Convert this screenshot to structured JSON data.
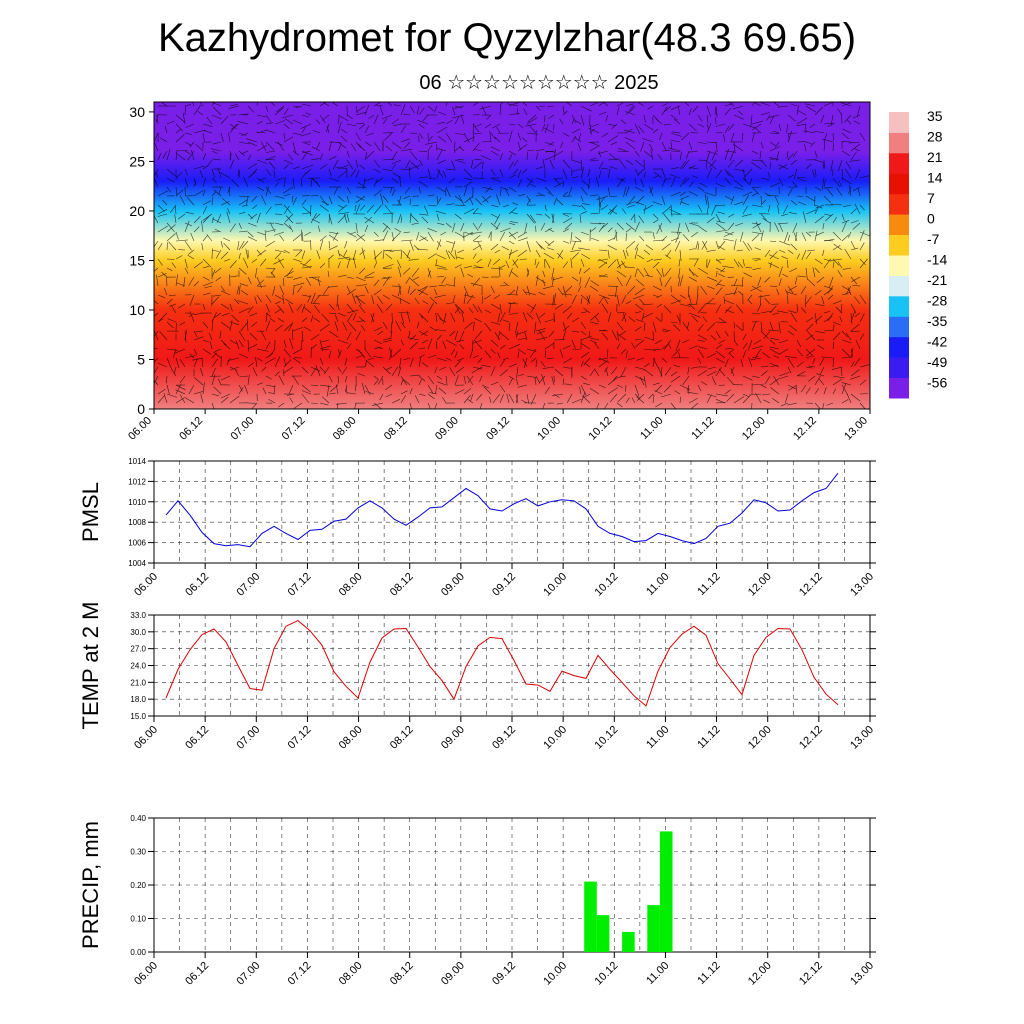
{
  "title": "Kazhydromet for Qyzylzhar(48.3 69.65)",
  "subtitle": "06 ☆☆☆☆☆☆☆☆☆ 2025",
  "colors": {
    "pmsl_line": "#0000dd",
    "temp_line": "#dd0000",
    "precip_bar": "#00ee00",
    "vector": "#000000"
  },
  "chart_data": [
    {
      "type": "heatmap",
      "description_of_field": "temperature by level with wind vectors",
      "ylim": [
        0,
        31
      ],
      "yticks": [
        "0",
        "5",
        "10",
        "15",
        "20",
        "25",
        "30"
      ],
      "xticks": [
        "06.00",
        "06.12",
        "07.00",
        "07.12",
        "08.00",
        "08.12",
        "09.00",
        "09.12",
        "10.00",
        "10.12",
        "11.00",
        "11.12",
        "12.00",
        "12.12",
        "13.00"
      ],
      "colorbar_labels": [
        "35",
        "28",
        "21",
        "14",
        "7",
        "0",
        "-7",
        "-14",
        "-21",
        "-28",
        "-35",
        "-42",
        "-49",
        "-56"
      ],
      "colorbar_range": [
        -63,
        42
      ],
      "colorbar_colors": [
        "#7a1fe8",
        "#3a1cf0",
        "#1a1cf8",
        "#2a6ef5",
        "#18c2f5",
        "#d8eef5",
        "#fff8b0",
        "#fccd20",
        "#f88a10",
        "#f53010",
        "#e81000",
        "#f01818",
        "#f08080",
        "#f4c0c0"
      ],
      "field_profile": [
        {
          "level": 0,
          "value": 30
        },
        {
          "level": 5,
          "value": 21
        },
        {
          "level": 10,
          "value": 7
        },
        {
          "level": 15,
          "value": -7
        },
        {
          "level": 17,
          "value": -14
        },
        {
          "level": 20,
          "value": -28
        },
        {
          "level": 23,
          "value": -42
        },
        {
          "level": 26,
          "value": -56
        },
        {
          "level": 31,
          "value": -63
        }
      ],
      "legend_placement": "right"
    },
    {
      "type": "line",
      "ylabel": "PMSL",
      "ylim": [
        1004,
        1014
      ],
      "yticks": [
        "1004",
        "1006",
        "1008",
        "1010",
        "1012",
        "1014"
      ],
      "xticks": [
        "06.00",
        "06.12",
        "07.00",
        "07.12",
        "08.00",
        "08.12",
        "09.00",
        "09.12",
        "10.00",
        "10.12",
        "11.00",
        "11.12",
        "12.00",
        "12.12",
        "13.00"
      ],
      "x_hours": [
        0,
        3,
        6,
        9,
        12,
        15,
        18,
        21,
        24,
        27,
        30,
        33,
        36,
        39,
        42,
        45,
        48,
        51,
        54,
        57,
        60,
        63,
        66,
        69,
        72,
        75,
        78,
        81,
        84,
        87,
        90,
        93,
        96,
        99,
        102,
        105,
        108,
        111,
        114,
        117,
        120,
        123,
        126,
        129,
        132,
        135,
        138,
        141,
        144,
        147,
        150,
        153,
        156,
        159,
        162,
        165,
        168
      ],
      "values": [
        1008.7,
        1010.1,
        1008.7,
        1007.0,
        1005.9,
        1005.7,
        1005.8,
        1005.6,
        1006.9,
        1007.6,
        1006.9,
        1006.3,
        1007.2,
        1007.3,
        1008.1,
        1008.3,
        1009.4,
        1010.1,
        1009.4,
        1008.3,
        1007.7,
        1008.5,
        1009.4,
        1009.5,
        1010.4,
        1011.3,
        1010.6,
        1009.3,
        1009.1,
        1009.8,
        1010.3,
        1009.6,
        1010.0,
        1010.2,
        1010.1,
        1009.3,
        1007.6,
        1006.9,
        1006.6,
        1006.1,
        1006.2,
        1006.9,
        1006.6,
        1006.2,
        1005.9,
        1006.4,
        1007.6,
        1007.9,
        1008.9,
        1010.2,
        1009.9,
        1009.1,
        1009.2,
        1010.1,
        1010.9,
        1011.3,
        1012.8
      ]
    },
    {
      "type": "line",
      "ylabel": "TEMP at 2 M",
      "ylim": [
        15.0,
        33.0
      ],
      "yticks": [
        "15.0",
        "18.0",
        "21.0",
        "24.0",
        "27.0",
        "30.0",
        "33.0"
      ],
      "xticks": [
        "06.00",
        "06.12",
        "07.00",
        "07.12",
        "08.00",
        "08.12",
        "09.00",
        "09.12",
        "10.00",
        "10.12",
        "11.00",
        "11.12",
        "12.00",
        "12.12",
        "13.00"
      ],
      "x_hours": [
        0,
        3,
        6,
        9,
        12,
        15,
        18,
        21,
        24,
        27,
        30,
        33,
        36,
        39,
        42,
        45,
        48,
        51,
        54,
        57,
        60,
        63,
        66,
        69,
        72,
        75,
        78,
        81,
        84,
        87,
        90,
        93,
        96,
        99,
        102,
        105,
        108,
        111,
        114,
        117,
        120,
        123,
        126,
        129,
        132,
        135,
        138,
        141,
        144,
        147,
        150,
        153,
        156,
        159,
        162,
        165,
        168
      ],
      "values": [
        18.2,
        23.3,
        26.8,
        29.5,
        30.5,
        28.2,
        24.0,
        19.9,
        19.6,
        27.0,
        31.0,
        32.0,
        30.2,
        27.6,
        22.9,
        20.3,
        18.2,
        24.6,
        28.9,
        30.5,
        30.6,
        27.3,
        23.8,
        21.3,
        18.0,
        23.8,
        27.5,
        29.0,
        28.8,
        24.9,
        20.7,
        20.5,
        19.4,
        23.0,
        22.2,
        21.7,
        25.8,
        23.3,
        21.0,
        18.6,
        16.8,
        23.0,
        27.2,
        29.6,
        31.0,
        29.4,
        24.3,
        21.6,
        18.8,
        25.8,
        29.0,
        30.6,
        30.5,
        26.8,
        21.9,
        18.9,
        17.0
      ]
    },
    {
      "type": "bar",
      "ylabel": "PRECIP, mm",
      "ylim": [
        0,
        0.4
      ],
      "yticks": [
        "0.00",
        "0.10",
        "0.20",
        "0.30",
        "0.40"
      ],
      "xticks": [
        "06.00",
        "06.12",
        "07.00",
        "07.12",
        "08.00",
        "08.12",
        "09.00",
        "09.12",
        "10.00",
        "10.12",
        "11.00",
        "11.12",
        "12.00",
        "12.12",
        "13.00"
      ],
      "x_hours_start": [
        100,
        103,
        109,
        115,
        118
      ],
      "bar_width_hours": 3,
      "values": [
        0.21,
        0.11,
        0.06,
        0.14,
        0.36
      ]
    }
  ]
}
